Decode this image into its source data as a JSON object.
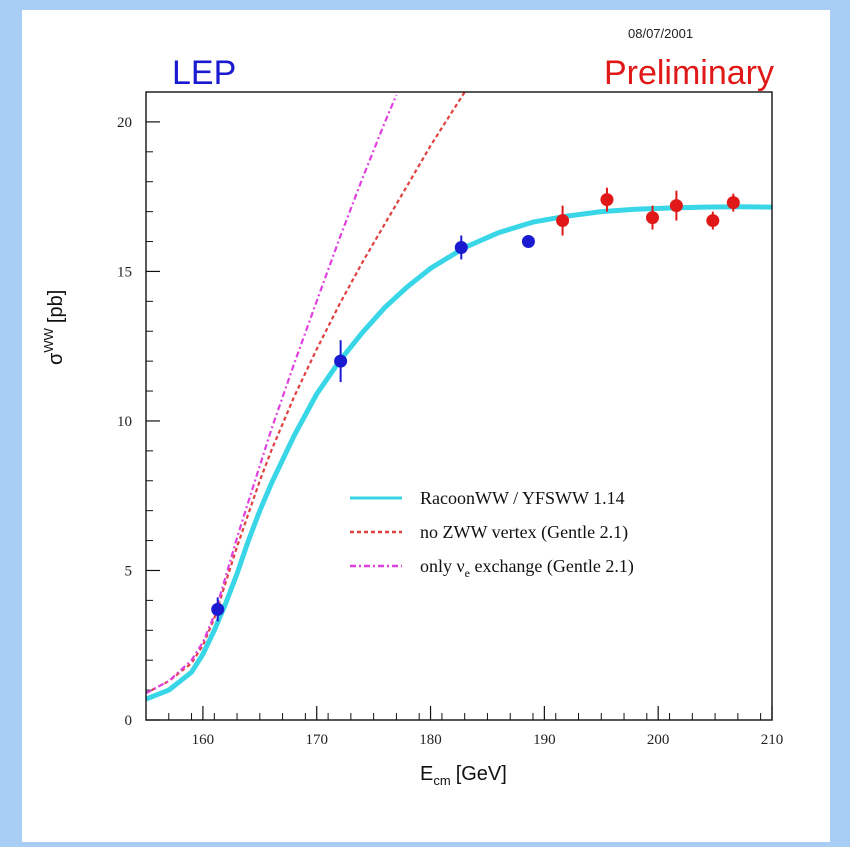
{
  "header": {
    "date": "08/07/2001",
    "left_label": "LEP",
    "right_label": "Preliminary"
  },
  "colors": {
    "lep_blue": "#1a1ad0",
    "preliminary_red": "#e01818",
    "racoon_cyan": "#38d6e6",
    "zww_red": "#e04040",
    "nue_magenta": "#e040e0",
    "background_blue": "#a9cef6"
  },
  "chart_data": {
    "type": "scatter",
    "xlabel_main": "E",
    "xlabel_sub": "cm",
    "xlabel_unit": "[GeV]",
    "ylabel_main": "σ",
    "ylabel_sup": "WW",
    "ylabel_unit": "[pb]",
    "xlim": [
      155,
      210
    ],
    "ylim": [
      0,
      21
    ],
    "xticks": [
      160,
      170,
      180,
      190,
      200,
      210
    ],
    "yticks": [
      0,
      5,
      10,
      15,
      20
    ],
    "legend_position": "lower-right",
    "legend": [
      {
        "label": "RacoonWW / YFSWW 1.14",
        "style": "solid",
        "color": "#38d6e6"
      },
      {
        "label": "no ZWW vertex (Gentle 2.1)",
        "style": "dashed",
        "color": "#e04040"
      },
      {
        "label": "only ν",
        "sub": "e",
        "rest": " exchange (Gentle 2.1)",
        "style": "dashdot",
        "color": "#e040e0"
      }
    ],
    "points_final": [
      {
        "x": 161.3,
        "y": 3.7,
        "err": 0.4
      },
      {
        "x": 172.1,
        "y": 12.0,
        "err": 0.7
      },
      {
        "x": 182.7,
        "y": 15.8,
        "err": 0.4
      },
      {
        "x": 188.6,
        "y": 16.0,
        "err": 0.2
      }
    ],
    "points_preliminary": [
      {
        "x": 191.6,
        "y": 16.7,
        "err": 0.5
      },
      {
        "x": 195.5,
        "y": 17.4,
        "err": 0.4
      },
      {
        "x": 199.5,
        "y": 16.8,
        "err": 0.4
      },
      {
        "x": 201.6,
        "y": 17.2,
        "err": 0.5
      },
      {
        "x": 204.8,
        "y": 16.7,
        "err": 0.3
      },
      {
        "x": 206.6,
        "y": 17.3,
        "err": 0.3
      }
    ],
    "series": [
      {
        "name": "RacoonWW / YFSWW 1.14",
        "x": [
          155,
          157,
          159,
          160,
          161,
          162,
          163,
          164,
          165,
          166,
          168,
          170,
          172,
          174,
          176,
          178,
          180,
          183,
          186,
          189,
          192,
          195,
          198,
          201,
          204,
          207,
          210
        ],
        "y": [
          0.7,
          1.0,
          1.6,
          2.2,
          3.0,
          3.9,
          4.9,
          6.0,
          7.0,
          7.9,
          9.5,
          10.9,
          12.0,
          12.95,
          13.8,
          14.5,
          15.1,
          15.8,
          16.3,
          16.65,
          16.85,
          17.0,
          17.08,
          17.12,
          17.15,
          17.16,
          17.15
        ]
      },
      {
        "name": "no ZWW vertex (Gentle 2.1)",
        "x": [
          155,
          157,
          159,
          160,
          161,
          162,
          163,
          164,
          165,
          166,
          168,
          170,
          172,
          174,
          176,
          178,
          180,
          182,
          183
        ],
        "y": [
          0.9,
          1.3,
          1.9,
          2.5,
          3.4,
          4.6,
          5.8,
          6.9,
          8.0,
          9.0,
          10.8,
          12.4,
          13.9,
          15.3,
          16.6,
          17.9,
          19.2,
          20.4,
          21.0
        ]
      },
      {
        "name": "only ν exchange (Gentle 2.1)",
        "x": [
          155,
          157,
          159,
          160,
          161,
          162,
          163,
          164,
          165,
          166,
          167,
          168,
          170,
          172,
          174,
          176,
          177
        ],
        "y": [
          0.9,
          1.3,
          2.0,
          2.6,
          3.5,
          4.8,
          6.1,
          7.3,
          8.5,
          9.7,
          10.8,
          11.9,
          14.0,
          16.1,
          18.1,
          20.0,
          20.9
        ]
      }
    ]
  }
}
